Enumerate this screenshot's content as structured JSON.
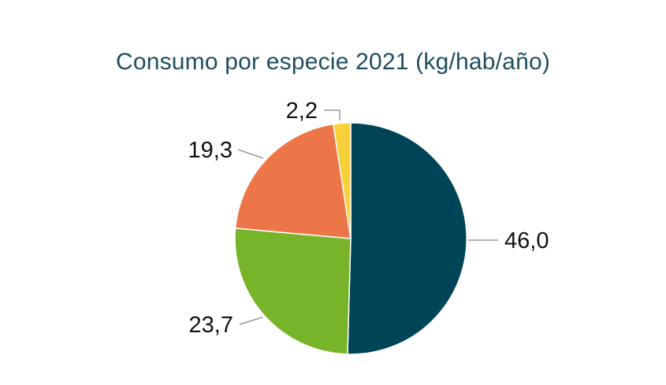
{
  "chart_data": {
    "type": "pie",
    "title": "Consumo por especie 2021 (kg/hab/año)",
    "values": [
      46.0,
      23.7,
      19.3,
      2.2
    ],
    "labels": [
      "46,0",
      "23,7",
      "19,3",
      "2,2"
    ],
    "colors": [
      "#004457",
      "#78b42a",
      "#ec7647",
      "#f8d03a"
    ],
    "start": "top",
    "direction": "clockwise",
    "legend": "none"
  }
}
